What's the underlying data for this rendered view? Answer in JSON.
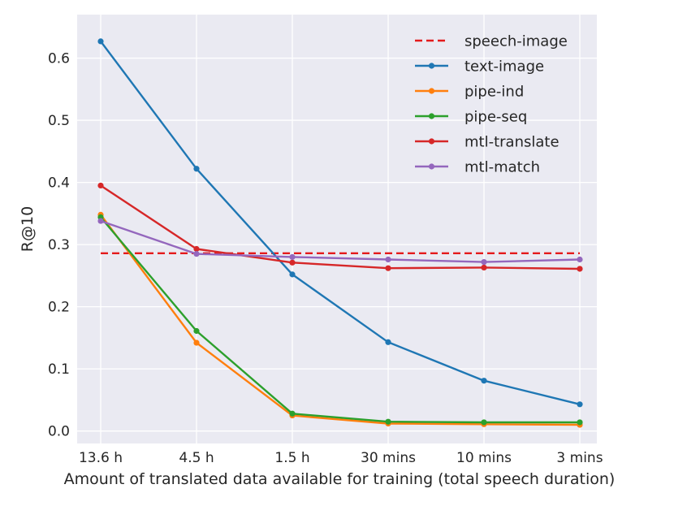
{
  "chart_data": {
    "type": "line",
    "title": "",
    "xlabel": "Amount of translated data available for training (total speech duration)",
    "ylabel": "R@10",
    "categories": [
      "13.6 h",
      "4.5 h",
      "1.5 h",
      "30 mins",
      "10 mins",
      "3 mins"
    ],
    "ylim": [
      -0.02,
      0.67
    ],
    "yticks": [
      "0.0",
      "0.1",
      "0.2",
      "0.3",
      "0.4",
      "0.5",
      "0.6"
    ],
    "grid": true,
    "legend": "top-right",
    "series": [
      {
        "name": "speech-image",
        "style": "dashed",
        "color": "#e41a1c",
        "values": [
          0.286,
          0.286,
          0.286,
          0.286,
          0.286,
          0.286
        ]
      },
      {
        "name": "text-image",
        "style": "solid",
        "color": "#1f77b4",
        "values": [
          0.627,
          0.422,
          0.252,
          0.143,
          0.081,
          0.043
        ]
      },
      {
        "name": "pipe-ind",
        "style": "solid",
        "color": "#ff7f0e",
        "values": [
          0.348,
          0.142,
          0.025,
          0.012,
          0.011,
          0.01
        ]
      },
      {
        "name": "pipe-seq",
        "style": "solid",
        "color": "#2ca02c",
        "values": [
          0.344,
          0.161,
          0.028,
          0.015,
          0.014,
          0.014
        ]
      },
      {
        "name": "mtl-translate",
        "style": "solid",
        "color": "#d62728",
        "values": [
          0.395,
          0.293,
          0.271,
          0.262,
          0.263,
          0.261
        ]
      },
      {
        "name": "mtl-match",
        "style": "solid",
        "color": "#9467bd",
        "values": [
          0.338,
          0.285,
          0.28,
          0.276,
          0.272,
          0.276
        ]
      }
    ]
  }
}
